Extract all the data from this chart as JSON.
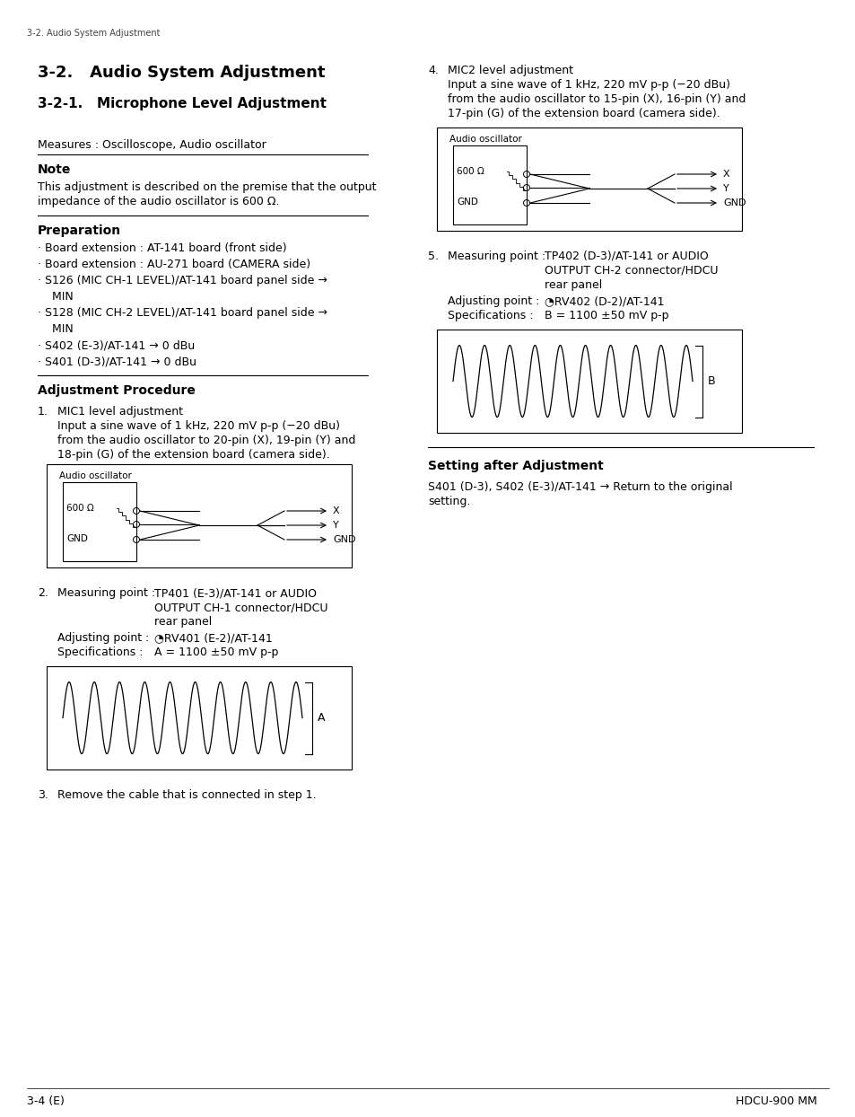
{
  "page_header": "3-2. Audio System Adjustment",
  "page_footer_left": "3-4 (E)",
  "page_footer_right": "HDCU-900 MM",
  "main_title": "3-2.   Audio System Adjustment",
  "sub_title": "3-2-1.   Microphone Level Adjustment",
  "measures_line": "Measures : Oscilloscope, Audio oscillator",
  "note_heading": "Note",
  "note_text_1": "This adjustment is described on the premise that the output",
  "note_text_2": "impedance of the audio oscillator is 600 Ω.",
  "preparation_heading": "Preparation",
  "prep_b1": "Board extension : AT-141 board (front side)",
  "prep_b2": "Board extension : AU-271 board (CAMERA side)",
  "prep_b3": "S126 (MIC CH-1 LEVEL)/AT-141 board panel side →",
  "prep_b3b": "MIN",
  "prep_b4": "S128 (MIC CH-2 LEVEL)/AT-141 board panel side →",
  "prep_b4b": "MIN",
  "prep_b5": "S402 (E-3)/AT-141 → 0 dBu",
  "prep_b6": "S401 (D-3)/AT-141 → 0 dBu",
  "adj_proc_heading": "Adjustment Procedure",
  "step1_num": "1.",
  "step1_title": "MIC1 level adjustment",
  "step1_line1": "Input a sine wave of 1 kHz, 220 mV p-p (−20 dBu)",
  "step1_line2": "from the audio oscillator to 20-pin (X), 19-pin (Y) and",
  "step1_line3": "18-pin (G) of the extension board (camera side).",
  "audio_osc_label": "Audio oscillator",
  "resistor_label": "600 Ω",
  "gnd_label": "GND",
  "x_label": "X",
  "y_label": "Y",
  "gnd_label2": "GND",
  "step2_num": "2.",
  "step2_meas_key": "Measuring point :",
  "step2_meas_val1": "TP401 (E-3)/AT-141 or AUDIO",
  "step2_meas_val2": "OUTPUT CH-1 connector/HDCU",
  "step2_meas_val3": "rear panel",
  "step2_adj_key": "Adjusting point :",
  "step2_adj_val": "◔RV401 (E-2)/AT-141",
  "step2_spec_key": "Specifications :",
  "step2_spec_val": "A = 1100 ±50 mV p-p",
  "sine_label_a": "A",
  "step3_num": "3.",
  "step3_text": "Remove the cable that is connected in step 1.",
  "r_step4_num": "4.",
  "r_step4_title": "MIC2 level adjustment",
  "r_step4_line1": "Input a sine wave of 1 kHz, 220 mV p-p (−20 dBu)",
  "r_step4_line2": "from the audio oscillator to 15-pin (X), 16-pin (Y) and",
  "r_step4_line3": "17-pin (G) of the extension board (camera side).",
  "r_step5_num": "5.",
  "r_step5_meas_key": "Measuring point :",
  "r_step5_meas_val1": "TP402 (D-3)/AT-141 or AUDIO",
  "r_step5_meas_val2": "OUTPUT CH-2 connector/HDCU",
  "r_step5_meas_val3": "rear panel",
  "r_step5_adj_key": "Adjusting point :",
  "r_step5_adj_val": "◔RV402 (D-2)/AT-141",
  "r_step5_spec_key": "Specifications :",
  "r_step5_spec_val": "B = 1100 ±50 mV p-p",
  "sine_label_b": "B",
  "setting_heading": "Setting after Adjustment",
  "setting_line1": "S401 (D-3), S402 (E-3)/AT-141 → Return to the original",
  "setting_line2": "setting.",
  "bg_color": "#ffffff",
  "text_color": "#000000"
}
